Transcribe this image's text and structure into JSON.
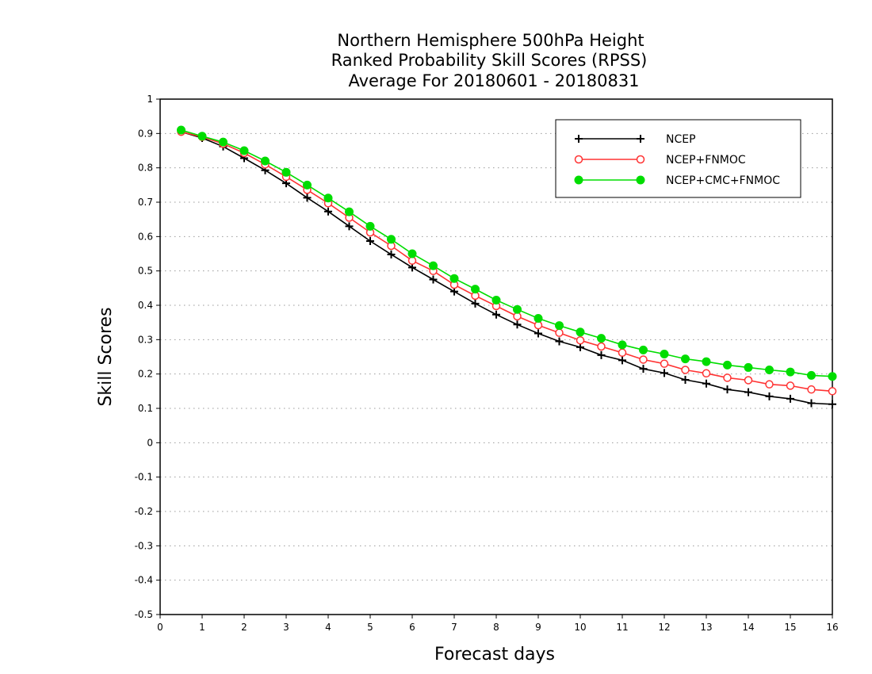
{
  "chart_data": {
    "type": "line",
    "title_lines": [
      "Northern Hemisphere 500hPa Height",
      "Ranked Probability Skill Scores (RPSS)",
      "Average For 20180601 - 20180831"
    ],
    "xlabel": "Forecast days",
    "ylabel": "Skill Scores",
    "xlim": [
      0,
      16
    ],
    "ylim": [
      -0.5,
      1
    ],
    "xticks": [
      0,
      1,
      2,
      3,
      4,
      5,
      6,
      7,
      8,
      9,
      10,
      11,
      12,
      13,
      14,
      15,
      16
    ],
    "xtick_labels": [
      "0",
      "1",
      "2",
      "3",
      "4",
      "5",
      "6",
      "7",
      "8",
      "9",
      "10",
      "11",
      "12",
      "13",
      "14",
      "15",
      "16"
    ],
    "yticks": [
      -0.5,
      -0.4,
      -0.3,
      -0.2,
      -0.1,
      0,
      0.1,
      0.2,
      0.3,
      0.4,
      0.5,
      0.6,
      0.7,
      0.8,
      0.9,
      1
    ],
    "ytick_labels": [
      "-0.5",
      "-0.4",
      "-0.3",
      "-0.2",
      "-0.1",
      "0",
      "0.1",
      "0.2",
      "0.3",
      "0.4",
      "0.5",
      "0.6",
      "0.7",
      "0.8",
      "0.9",
      "1"
    ],
    "grid": "horizontal dotted",
    "legend_position": "top-right",
    "x": [
      0.5,
      1,
      1.5,
      2,
      2.5,
      3,
      3.5,
      4,
      4.5,
      5,
      5.5,
      6,
      6.5,
      7,
      7.5,
      8,
      8.5,
      9,
      9.5,
      10,
      10.5,
      11,
      11.5,
      12,
      12.5,
      13,
      13.5,
      14,
      14.5,
      15,
      15.5,
      16
    ],
    "series": [
      {
        "name": "NCEP",
        "color": "#000000",
        "marker": "plus",
        "values": [
          0.905,
          0.887,
          0.862,
          0.828,
          0.793,
          0.755,
          0.713,
          0.673,
          0.63,
          0.587,
          0.548,
          0.51,
          0.475,
          0.44,
          0.405,
          0.373,
          0.344,
          0.318,
          0.295,
          0.278,
          0.255,
          0.24,
          0.215,
          0.203,
          0.183,
          0.172,
          0.155,
          0.147,
          0.135,
          0.128,
          0.115,
          0.112
        ]
      },
      {
        "name": "NCEP+FNMOC",
        "color": "#ff3333",
        "marker": "open-circle",
        "values": [
          0.905,
          0.89,
          0.87,
          0.843,
          0.81,
          0.774,
          0.736,
          0.697,
          0.655,
          0.612,
          0.573,
          0.53,
          0.5,
          0.46,
          0.428,
          0.398,
          0.368,
          0.342,
          0.32,
          0.298,
          0.28,
          0.262,
          0.242,
          0.23,
          0.212,
          0.202,
          0.189,
          0.182,
          0.17,
          0.166,
          0.155,
          0.15
        ]
      },
      {
        "name": "NCEP+CMC+FNMOC",
        "color": "#00dd00",
        "marker": "filled-circle",
        "values": [
          0.91,
          0.892,
          0.875,
          0.85,
          0.82,
          0.787,
          0.75,
          0.712,
          0.672,
          0.63,
          0.592,
          0.55,
          0.515,
          0.478,
          0.447,
          0.415,
          0.388,
          0.362,
          0.341,
          0.322,
          0.304,
          0.285,
          0.27,
          0.258,
          0.244,
          0.236,
          0.226,
          0.219,
          0.212,
          0.206,
          0.196,
          0.193
        ]
      }
    ]
  }
}
